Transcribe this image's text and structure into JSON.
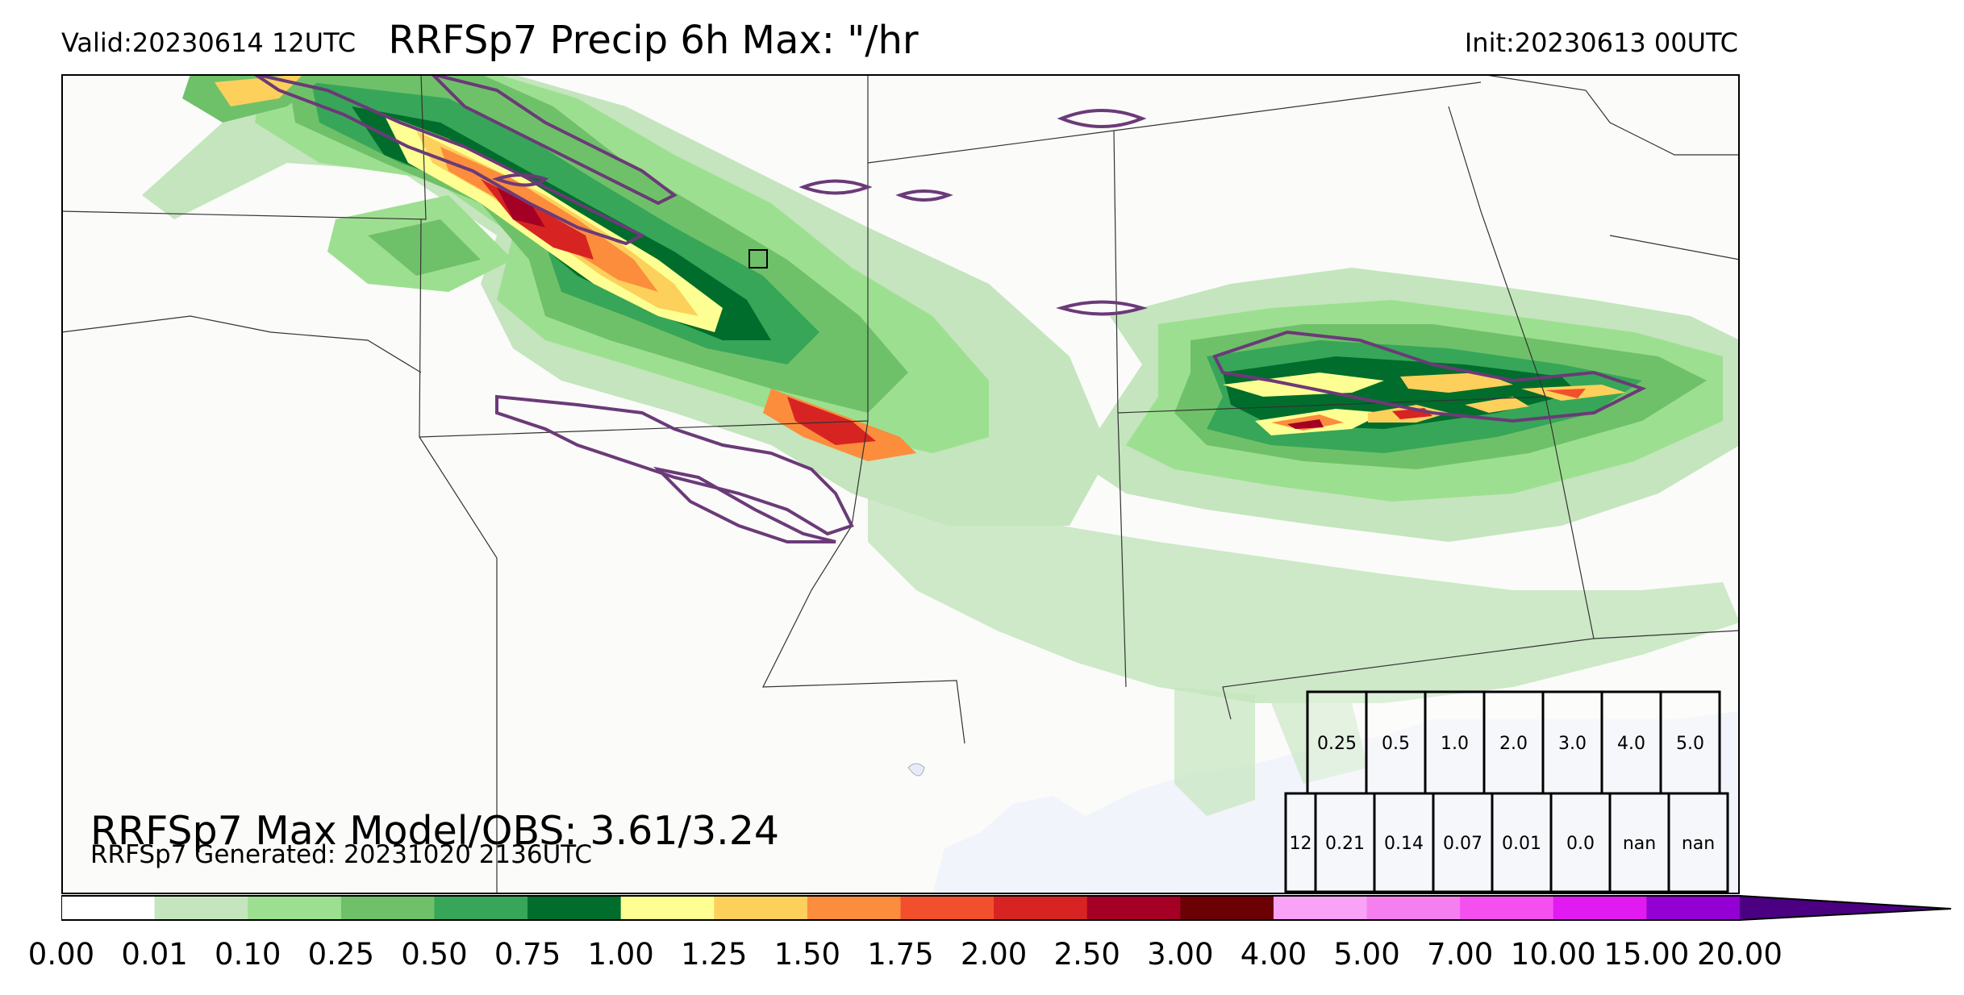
{
  "header": {
    "valid": "Valid:20230614 12UTC",
    "title": "RRFSp7 Precip 6h Max: \"/hr",
    "init": "Init:20230613 00UTC"
  },
  "stats": {
    "max_line": "RRFSp7 Max Model/OBS: 3.61/3.24",
    "generated": "RRFSp7 Generated: 20231020 2136UTC"
  },
  "threshold_table": {
    "thresholds": [
      "0.25",
      "0.5",
      "1.0",
      "2.0",
      "3.0",
      "4.0",
      "5.0"
    ],
    "row_label": "12",
    "values": [
      "0.21",
      "0.14",
      "0.07",
      "0.01",
      "0.0",
      "nan",
      "nan"
    ]
  },
  "colorbar": {
    "ticks": [
      "0.00",
      "0.01",
      "0.10",
      "0.25",
      "0.50",
      "0.75",
      "1.00",
      "1.25",
      "1.50",
      "1.75",
      "2.00",
      "2.50",
      "3.00",
      "4.00",
      "5.00",
      "7.00",
      "10.00",
      "15.00",
      "20.00"
    ],
    "colors": [
      "#ffffff",
      "#c4e5bd",
      "#9ddf90",
      "#6fc169",
      "#37a658",
      "#006d2c",
      "#feff92",
      "#fdd05c",
      "#fc8d3d",
      "#f2502c",
      "#d72422",
      "#a40026",
      "#6b0005",
      "#f9a3f6",
      "#f67ff0",
      "#f44fef",
      "#e01af0",
      "#9400d3"
    ],
    "extend_color": "#4b0082"
  },
  "map_style": {
    "land": "#fbfbfa",
    "water": "#f1f4fa",
    "border": "#333333",
    "obs_contour": "#6b3a78"
  }
}
